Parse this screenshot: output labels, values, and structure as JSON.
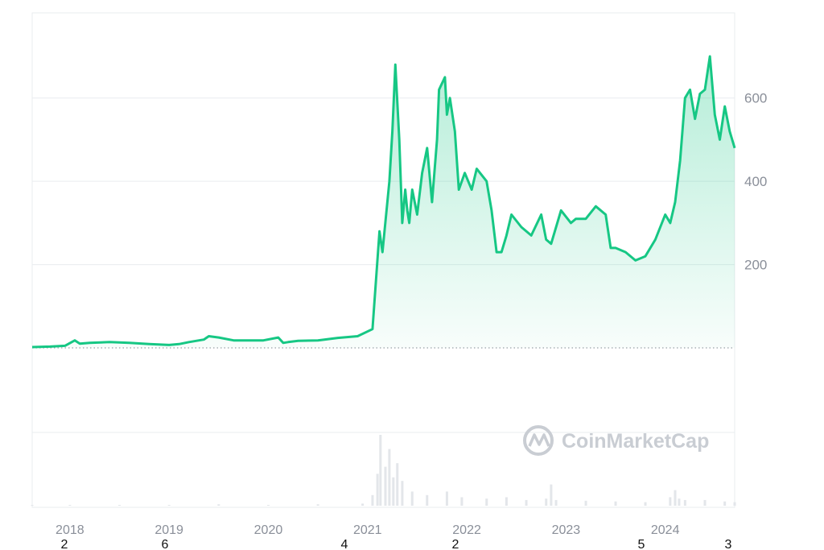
{
  "chart_data": {
    "type": "area",
    "title": "",
    "xlabel": "",
    "ylabel": "",
    "x_ticks": [
      "2018",
      "2019",
      "2020",
      "2021",
      "2022",
      "2023",
      "2024"
    ],
    "y_ticks": [
      "200",
      "400",
      "600"
    ],
    "xlim": [
      2017.62,
      2024.7
    ],
    "ylim": [
      0,
      700
    ],
    "baseline_dotted": true,
    "grid": true,
    "colors": {
      "line": "#16c784",
      "area": "#16c784",
      "grid": "#e9ecef",
      "text": "#8a8f99"
    },
    "series": [
      {
        "x": [
          2017.62,
          2017.8,
          2017.95,
          2018.05,
          2018.1,
          2018.2,
          2018.4,
          2018.6,
          2018.8,
          2019.0,
          2019.1,
          2019.2,
          2019.35,
          2019.4,
          2019.5,
          2019.65,
          2019.8,
          2019.95,
          2020.1,
          2020.15,
          2020.2,
          2020.3,
          2020.5,
          2020.7,
          2020.9,
          2021.05,
          2021.12,
          2021.15,
          2021.22,
          2021.25,
          2021.28,
          2021.32,
          2021.35,
          2021.38,
          2021.4,
          2021.42,
          2021.45,
          2021.5,
          2021.55,
          2021.6,
          2021.65,
          2021.7,
          2021.72,
          2021.78,
          2021.8,
          2021.83,
          2021.88,
          2021.92,
          2021.98,
          2022.05,
          2022.1,
          2022.2,
          2022.25,
          2022.3,
          2022.35,
          2022.4,
          2022.45,
          2022.55,
          2022.65,
          2022.75,
          2022.8,
          2022.85,
          2022.95,
          2023.05,
          2023.1,
          2023.2,
          2023.3,
          2023.4,
          2023.45,
          2023.5,
          2023.6,
          2023.7,
          2023.8,
          2023.9,
          2024.0,
          2024.05,
          2024.1,
          2024.15,
          2024.2,
          2024.25,
          2024.3,
          2024.35,
          2024.4,
          2024.45,
          2024.5,
          2024.55,
          2024.6,
          2024.65,
          2024.7
        ],
        "y": [
          2,
          3,
          5,
          18,
          10,
          12,
          14,
          12,
          9,
          7,
          9,
          14,
          20,
          28,
          25,
          18,
          18,
          18,
          25,
          12,
          14,
          17,
          18,
          24,
          28,
          45,
          280,
          230,
          400,
          520,
          680,
          500,
          300,
          380,
          330,
          300,
          380,
          320,
          420,
          480,
          350,
          500,
          620,
          650,
          560,
          600,
          520,
          380,
          420,
          380,
          430,
          400,
          330,
          230,
          230,
          270,
          320,
          290,
          270,
          320,
          260,
          250,
          330,
          300,
          310,
          310,
          340,
          320,
          240,
          240,
          230,
          210,
          220,
          260,
          320,
          300,
          350,
          450,
          600,
          620,
          550,
          610,
          620,
          700,
          560,
          500,
          580,
          520,
          480
        ]
      }
    ],
    "volume": {
      "x": [
        2017.62,
        2018.0,
        2018.5,
        2019.0,
        2019.5,
        2020.0,
        2020.5,
        2020.95,
        2021.05,
        2021.1,
        2021.13,
        2021.18,
        2021.22,
        2021.26,
        2021.3,
        2021.35,
        2021.45,
        2021.6,
        2021.8,
        2021.95,
        2022.2,
        2022.4,
        2022.6,
        2022.8,
        2022.85,
        2022.9,
        2023.2,
        2023.5,
        2023.8,
        2024.05,
        2024.1,
        2024.14,
        2024.2,
        2024.4,
        2024.6,
        2024.7
      ],
      "y": [
        0.01,
        0.01,
        0.01,
        0.01,
        0.02,
        0.01,
        0.02,
        0.03,
        0.15,
        0.45,
        1.0,
        0.55,
        0.8,
        0.4,
        0.6,
        0.35,
        0.2,
        0.15,
        0.2,
        0.12,
        0.1,
        0.12,
        0.08,
        0.1,
        0.3,
        0.08,
        0.07,
        0.06,
        0.05,
        0.12,
        0.22,
        0.1,
        0.08,
        0.08,
        0.06,
        0.05
      ]
    }
  },
  "watermark": {
    "brand": "CoinMarketCap"
  },
  "stray_digits": [
    "2",
    "6",
    "4",
    "2",
    "5",
    "3"
  ]
}
